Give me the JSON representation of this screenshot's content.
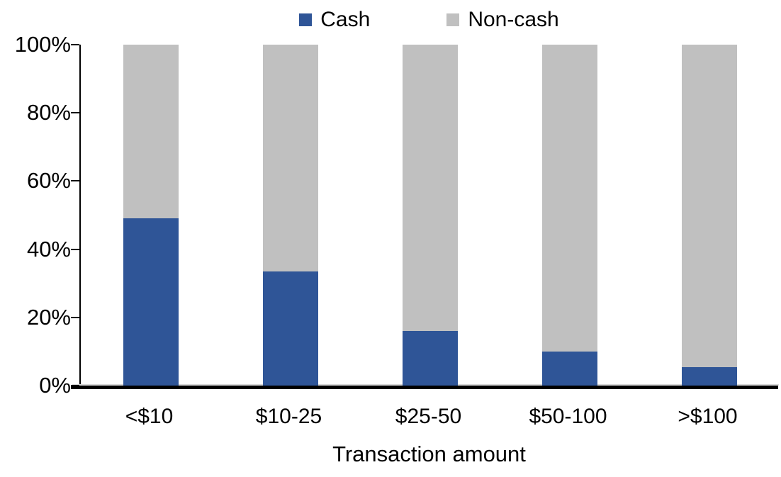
{
  "chart_data": {
    "type": "bar",
    "stacked": true,
    "orientation": "vertical",
    "title": "",
    "xlabel": "Transaction amount",
    "ylabel": "",
    "categories": [
      "<$10",
      "$10-25",
      "$25-50",
      "$50-100",
      ">$100"
    ],
    "series": [
      {
        "name": "Cash",
        "color": "#2F5597",
        "values": [
          49,
          33.5,
          16,
          10,
          5.5
        ]
      },
      {
        "name": "Non-cash",
        "color": "#C0C0C0",
        "values": [
          51,
          66.5,
          84,
          90,
          94.5
        ]
      }
    ],
    "ylim": [
      0,
      100
    ],
    "ytick_step": 20,
    "ytick_labels": [
      "0%",
      "20%",
      "40%",
      "60%",
      "80%",
      "100%"
    ],
    "legend_position": "top-center",
    "grid": false,
    "axis_color": "#000000",
    "background_color": "#FFFFFF"
  }
}
